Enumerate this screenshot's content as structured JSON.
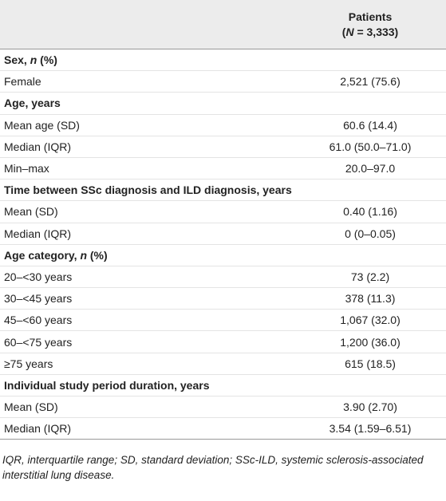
{
  "table": {
    "header": {
      "title": "Patients",
      "subtitle": [
        "(",
        "N",
        " = 3,333)"
      ]
    },
    "sections": [
      {
        "title": [
          "Sex, ",
          "n",
          " (%)"
        ],
        "rows": [
          {
            "label": "Female",
            "value": "2,521 (75.6)"
          }
        ]
      },
      {
        "title": [
          "Age, years"
        ],
        "rows": [
          {
            "label": "Mean age (SD)",
            "value": "60.6 (14.4)"
          },
          {
            "label": "Median (IQR)",
            "value": "61.0 (50.0–71.0)"
          },
          {
            "label": "Min–max",
            "value": "20.0–97.0"
          }
        ]
      },
      {
        "title": [
          "Time between SSc diagnosis and ILD diagnosis, years"
        ],
        "rows": [
          {
            "label": "Mean (SD)",
            "value": "0.40 (1.16)"
          },
          {
            "label": "Median (IQR)",
            "value": "0 (0–0.05)"
          }
        ]
      },
      {
        "title": [
          "Age category, ",
          "n",
          " (%)"
        ],
        "rows": [
          {
            "label": "20–<30 years",
            "value": "73 (2.2)"
          },
          {
            "label": "30–<45 years",
            "value": "378 (11.3)"
          },
          {
            "label": "45–<60 years",
            "value": "1,067 (32.0)"
          },
          {
            "label": "60–<75 years",
            "value": "1,200 (36.0)"
          },
          {
            "label": "≥75 years",
            "value": "615 (18.5)"
          }
        ]
      },
      {
        "title": [
          "Individual study period duration, years"
        ],
        "rows": [
          {
            "label": "Mean (SD)",
            "value": "3.90 (2.70)"
          },
          {
            "label": "Median (IQR)",
            "value": "3.54 (1.59–6.51)"
          }
        ]
      }
    ],
    "footnote": "IQR, interquartile range; SD, standard deviation; SSc-ILD, systemic sclerosis-associated interstitial lung disease."
  }
}
